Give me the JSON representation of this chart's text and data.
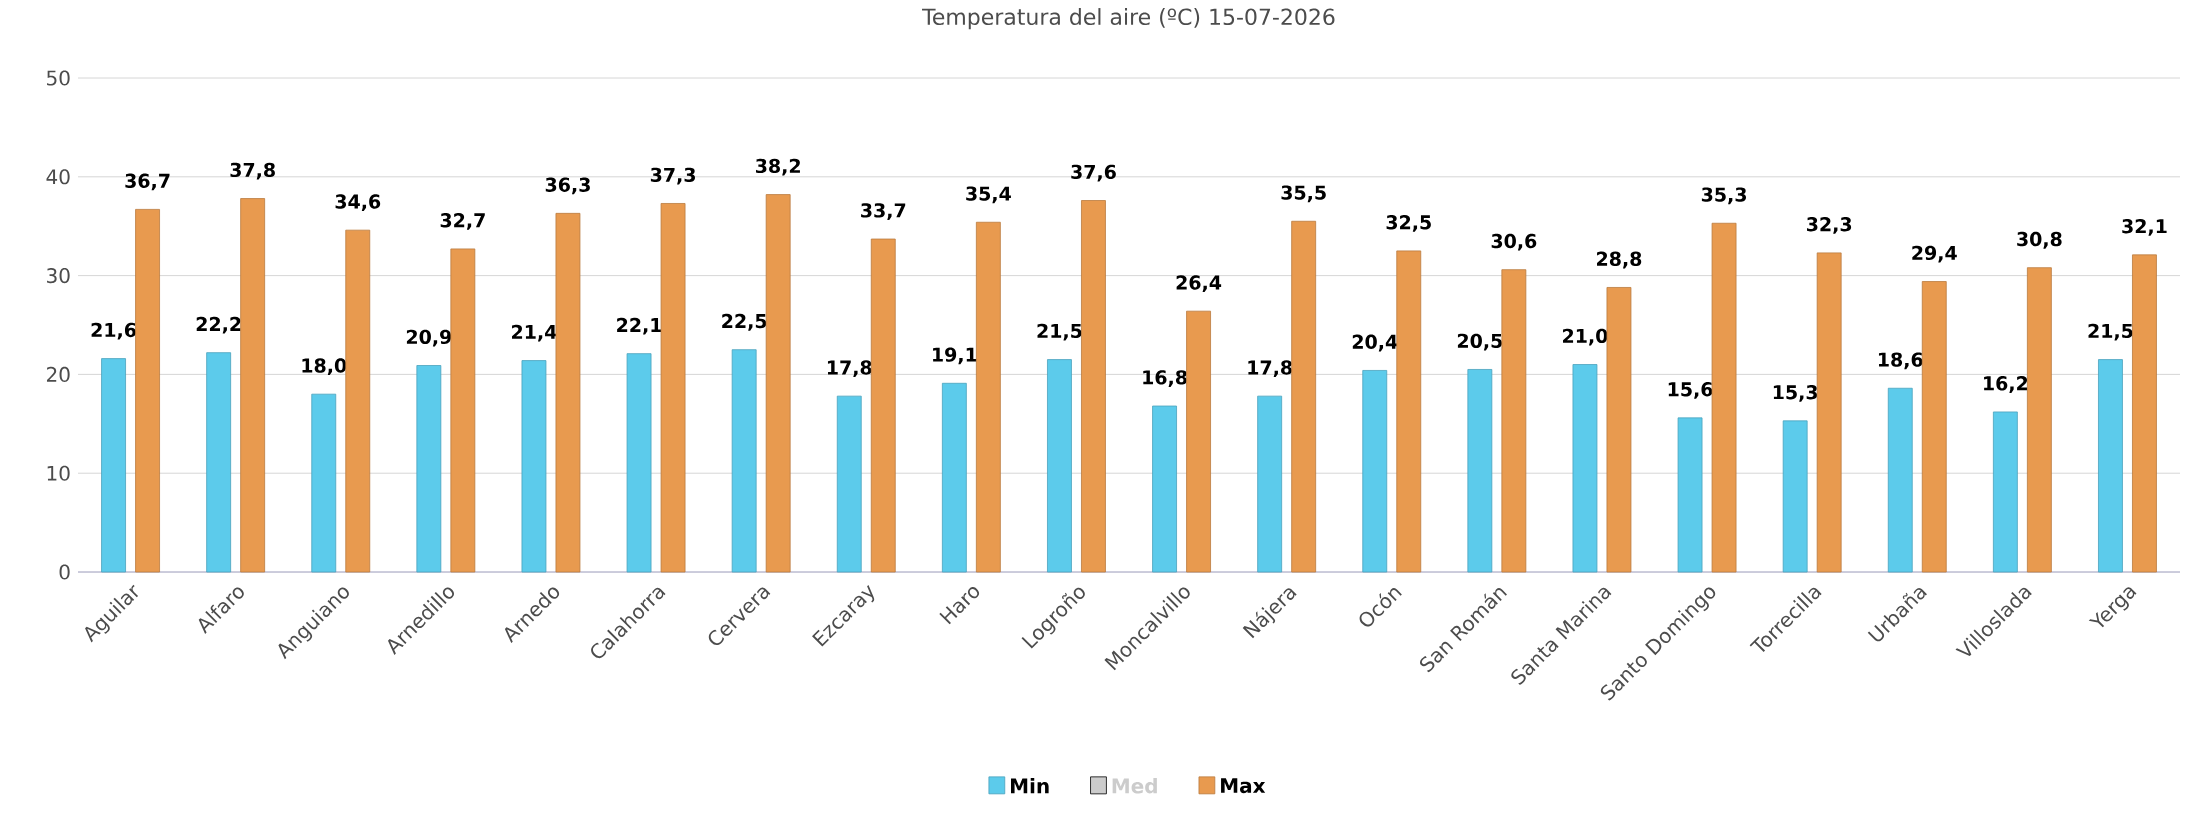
{
  "chart_data": {
    "type": "bar",
    "title": "Temperatura del aire (ºC) 15-07-2026",
    "categories": [
      "Aguilar",
      "Alfaro",
      "Anguiano",
      "Arnedillo",
      "Arnedo",
      "Calahorra",
      "Cervera",
      "Ezcaray",
      "Haro",
      "Logroño",
      "Moncalvillo",
      "Nájera",
      "Ocón",
      "San Román",
      "Santa Marina",
      "Santo Domingo",
      "Torrecilla",
      "Urbaña",
      "Villoslada",
      "Yerga"
    ],
    "series": [
      {
        "name": "Min",
        "color": "#5ccbeb",
        "values": [
          21.6,
          22.2,
          18.0,
          20.9,
          21.4,
          22.1,
          22.5,
          17.8,
          19.1,
          21.5,
          16.8,
          17.8,
          20.4,
          20.5,
          21.0,
          15.6,
          15.3,
          18.6,
          16.2,
          21.5
        ],
        "value_labels": [
          "21,6",
          "22,2",
          "18,0",
          "20,9",
          "21,4",
          "22,1",
          "22,5",
          "17,8",
          "19,1",
          "21,5",
          "16,8",
          "17,8",
          "20,4",
          "20,5",
          "21,0",
          "15,6",
          "15,3",
          "18,6",
          "16,2",
          "21,5"
        ]
      },
      {
        "name": "Med",
        "color": "#cccccc",
        "values": [
          null,
          null,
          null,
          null,
          null,
          null,
          null,
          null,
          null,
          null,
          null,
          null,
          null,
          null,
          null,
          null,
          null,
          null,
          null,
          null
        ]
      },
      {
        "name": "Max",
        "color": "#e89a4f",
        "values": [
          36.7,
          37.8,
          34.6,
          32.7,
          36.3,
          37.3,
          38.2,
          33.7,
          35.4,
          37.6,
          26.4,
          35.5,
          32.5,
          30.6,
          28.8,
          35.3,
          32.3,
          29.4,
          30.8,
          32.1
        ],
        "value_labels": [
          "36,7",
          "37,8",
          "34,6",
          "32,7",
          "36,3",
          "37,3",
          "38,2",
          "33,7",
          "35,4",
          "37,6",
          "26,4",
          "35,5",
          "32,5",
          "30,6",
          "28,8",
          "35,3",
          "32,3",
          "29,4",
          "30,8",
          "32,1"
        ]
      }
    ],
    "ylim": [
      0,
      50
    ],
    "yticks": [
      0,
      10,
      20,
      30,
      40,
      50
    ],
    "grid": "y",
    "legend": "bottom"
  }
}
